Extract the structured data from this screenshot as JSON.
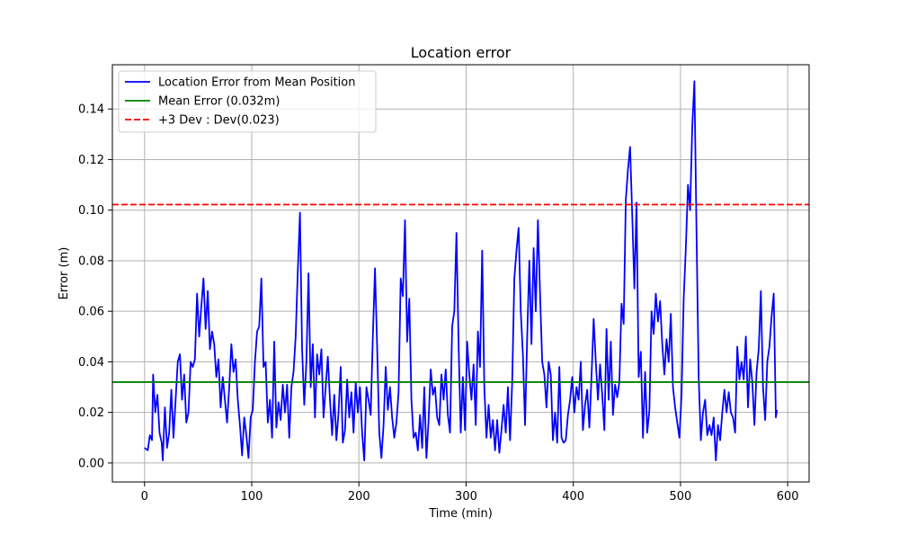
{
  "chart_data": {
    "type": "line",
    "title": "Location error",
    "xlabel": "Time (min)",
    "ylabel": "Error (m)",
    "xlim": [
      -30,
      620
    ],
    "ylim": [
      -0.0075,
      0.1575
    ],
    "x_ticks": [
      0,
      100,
      200,
      300,
      400,
      500,
      600
    ],
    "x_tick_labels": [
      "0",
      "100",
      "200",
      "300",
      "400",
      "500",
      "600"
    ],
    "y_ticks": [
      0.0,
      0.02,
      0.04,
      0.06,
      0.08,
      0.1,
      0.12,
      0.14
    ],
    "y_tick_labels": [
      "0.00",
      "0.02",
      "0.04",
      "0.06",
      "0.08",
      "0.10",
      "0.12",
      "0.14"
    ],
    "grid": true,
    "legend_position": "top-left",
    "series": [
      {
        "name": "Location Error from Mean Position",
        "color": "#0000ff",
        "style": "solid",
        "points": [
          [
            0,
            0.006
          ],
          [
            3,
            0.005
          ],
          [
            5,
            0.011
          ],
          [
            7,
            0.009
          ],
          [
            8,
            0.035
          ],
          [
            10,
            0.02
          ],
          [
            12,
            0.027
          ],
          [
            14,
            0.012
          ],
          [
            16,
            0.008
          ],
          [
            17,
            0.001
          ],
          [
            19,
            0.022
          ],
          [
            21,
            0.006
          ],
          [
            23,
            0.012
          ],
          [
            25,
            0.029
          ],
          [
            27,
            0.01
          ],
          [
            29,
            0.025
          ],
          [
            31,
            0.04
          ],
          [
            33,
            0.043
          ],
          [
            35,
            0.025
          ],
          [
            37,
            0.035
          ],
          [
            39,
            0.016
          ],
          [
            41,
            0.02
          ],
          [
            43,
            0.04
          ],
          [
            45,
            0.038
          ],
          [
            47,
            0.041
          ],
          [
            49,
            0.067
          ],
          [
            51,
            0.05
          ],
          [
            53,
            0.062
          ],
          [
            55,
            0.073
          ],
          [
            57,
            0.053
          ],
          [
            59,
            0.068
          ],
          [
            61,
            0.045
          ],
          [
            63,
            0.052
          ],
          [
            65,
            0.047
          ],
          [
            67,
            0.034
          ],
          [
            69,
            0.041
          ],
          [
            71,
            0.022
          ],
          [
            73,
            0.034
          ],
          [
            75,
            0.025
          ],
          [
            77,
            0.016
          ],
          [
            79,
            0.03
          ],
          [
            81,
            0.047
          ],
          [
            83,
            0.036
          ],
          [
            85,
            0.041
          ],
          [
            87,
            0.025
          ],
          [
            89,
            0.015
          ],
          [
            91,
            0.003
          ],
          [
            93,
            0.018
          ],
          [
            95,
            0.011
          ],
          [
            97,
            0.002
          ],
          [
            99,
            0.018
          ],
          [
            101,
            0.021
          ],
          [
            103,
            0.04
          ],
          [
            105,
            0.052
          ],
          [
            107,
            0.054
          ],
          [
            109,
            0.073
          ],
          [
            111,
            0.038
          ],
          [
            113,
            0.04
          ],
          [
            115,
            0.016
          ],
          [
            117,
            0.025
          ],
          [
            119,
            0.01
          ],
          [
            121,
            0.048
          ],
          [
            123,
            0.014
          ],
          [
            125,
            0.024
          ],
          [
            127,
            0.017
          ],
          [
            129,
            0.031
          ],
          [
            131,
            0.02
          ],
          [
            133,
            0.031
          ],
          [
            135,
            0.01
          ],
          [
            137,
            0.03
          ],
          [
            139,
            0.036
          ],
          [
            141,
            0.05
          ],
          [
            143,
            0.076
          ],
          [
            145,
            0.099
          ],
          [
            147,
            0.045
          ],
          [
            149,
            0.023
          ],
          [
            151,
            0.04
          ],
          [
            153,
            0.075
          ],
          [
            155,
            0.03
          ],
          [
            157,
            0.047
          ],
          [
            159,
            0.018
          ],
          [
            161,
            0.043
          ],
          [
            163,
            0.035
          ],
          [
            165,
            0.045
          ],
          [
            167,
            0.018
          ],
          [
            169,
            0.03
          ],
          [
            171,
            0.042
          ],
          [
            173,
            0.025
          ],
          [
            175,
            0.011
          ],
          [
            177,
            0.027
          ],
          [
            179,
            0.009
          ],
          [
            181,
            0.02
          ],
          [
            183,
            0.038
          ],
          [
            185,
            0.008
          ],
          [
            187,
            0.013
          ],
          [
            189,
            0.033
          ],
          [
            191,
            0.018
          ],
          [
            193,
            0.028
          ],
          [
            195,
            0.012
          ],
          [
            197,
            0.032
          ],
          [
            199,
            0.02
          ],
          [
            201,
            0.03
          ],
          [
            203,
            0.012
          ],
          [
            205,
            0.001
          ],
          [
            207,
            0.03
          ],
          [
            209,
            0.025
          ],
          [
            211,
            0.019
          ],
          [
            213,
            0.05
          ],
          [
            215,
            0.077
          ],
          [
            217,
            0.046
          ],
          [
            219,
            0.012
          ],
          [
            221,
            0.002
          ],
          [
            223,
            0.015
          ],
          [
            225,
            0.038
          ],
          [
            227,
            0.021
          ],
          [
            229,
            0.03
          ],
          [
            231,
            0.018
          ],
          [
            233,
            0.01
          ],
          [
            235,
            0.016
          ],
          [
            237,
            0.028
          ],
          [
            239,
            0.073
          ],
          [
            241,
            0.066
          ],
          [
            243,
            0.096
          ],
          [
            245,
            0.048
          ],
          [
            247,
            0.065
          ],
          [
            249,
            0.025
          ],
          [
            251,
            0.01
          ],
          [
            253,
            0.012
          ],
          [
            255,
            0.005
          ],
          [
            257,
            0.019
          ],
          [
            259,
            0.006
          ],
          [
            261,
            0.03
          ],
          [
            263,
            0.002
          ],
          [
            265,
            0.017
          ],
          [
            267,
            0.037
          ],
          [
            269,
            0.027
          ],
          [
            271,
            0.03
          ],
          [
            273,
            0.018
          ],
          [
            275,
            0.015
          ],
          [
            277,
            0.035
          ],
          [
            279,
            0.025
          ],
          [
            281,
            0.037
          ],
          [
            283,
            0.019
          ],
          [
            285,
            0.012
          ],
          [
            287,
            0.054
          ],
          [
            289,
            0.06
          ],
          [
            291,
            0.091
          ],
          [
            293,
            0.047
          ],
          [
            295,
            0.012
          ],
          [
            297,
            0.034
          ],
          [
            299,
            0.013
          ],
          [
            301,
            0.048
          ],
          [
            303,
            0.035
          ],
          [
            305,
            0.025
          ],
          [
            307,
            0.039
          ],
          [
            309,
            0.015
          ],
          [
            311,
            0.052
          ],
          [
            313,
            0.038
          ],
          [
            315,
            0.084
          ],
          [
            317,
            0.03
          ],
          [
            319,
            0.01
          ],
          [
            321,
            0.023
          ],
          [
            323,
            0.01
          ],
          [
            325,
            0.017
          ],
          [
            327,
            0.005
          ],
          [
            329,
            0.017
          ],
          [
            331,
            0.004
          ],
          [
            333,
            0.013
          ],
          [
            335,
            0.023
          ],
          [
            337,
            0.012
          ],
          [
            339,
            0.03
          ],
          [
            341,
            0.009
          ],
          [
            343,
            0.032
          ],
          [
            345,
            0.073
          ],
          [
            347,
            0.084
          ],
          [
            349,
            0.093
          ],
          [
            351,
            0.06
          ],
          [
            353,
            0.043
          ],
          [
            355,
            0.015
          ],
          [
            357,
            0.05
          ],
          [
            359,
            0.08
          ],
          [
            361,
            0.047
          ],
          [
            363,
            0.085
          ],
          [
            365,
            0.06
          ],
          [
            367,
            0.096
          ],
          [
            369,
            0.067
          ],
          [
            371,
            0.04
          ],
          [
            373,
            0.035
          ],
          [
            375,
            0.022
          ],
          [
            377,
            0.04
          ],
          [
            379,
            0.035
          ],
          [
            381,
            0.009
          ],
          [
            383,
            0.02
          ],
          [
            385,
            0.008
          ],
          [
            387,
            0.038
          ],
          [
            389,
            0.01
          ],
          [
            391,
            0.008
          ],
          [
            393,
            0.009
          ],
          [
            395,
            0.019
          ],
          [
            397,
            0.025
          ],
          [
            399,
            0.034
          ],
          [
            401,
            0.02
          ],
          [
            403,
            0.03
          ],
          [
            405,
            0.025
          ],
          [
            407,
            0.04
          ],
          [
            409,
            0.013
          ],
          [
            411,
            0.023
          ],
          [
            413,
            0.029
          ],
          [
            415,
            0.014
          ],
          [
            417,
            0.034
          ],
          [
            419,
            0.057
          ],
          [
            421,
            0.04
          ],
          [
            423,
            0.025
          ],
          [
            425,
            0.039
          ],
          [
            427,
            0.027
          ],
          [
            429,
            0.013
          ],
          [
            431,
            0.053
          ],
          [
            433,
            0.025
          ],
          [
            435,
            0.048
          ],
          [
            437,
            0.019
          ],
          [
            439,
            0.031
          ],
          [
            441,
            0.026
          ],
          [
            443,
            0.032
          ],
          [
            445,
            0.063
          ],
          [
            447,
            0.055
          ],
          [
            449,
            0.104
          ],
          [
            451,
            0.116
          ],
          [
            453,
            0.125
          ],
          [
            455,
            0.098
          ],
          [
            457,
            0.069
          ],
          [
            459,
            0.103
          ],
          [
            461,
            0.034
          ],
          [
            463,
            0.044
          ],
          [
            465,
            0.01
          ],
          [
            467,
            0.036
          ],
          [
            469,
            0.012
          ],
          [
            471,
            0.021
          ],
          [
            473,
            0.06
          ],
          [
            475,
            0.051
          ],
          [
            477,
            0.067
          ],
          [
            479,
            0.056
          ],
          [
            481,
            0.064
          ],
          [
            483,
            0.047
          ],
          [
            485,
            0.035
          ],
          [
            487,
            0.049
          ],
          [
            489,
            0.04
          ],
          [
            491,
            0.059
          ],
          [
            493,
            0.03
          ],
          [
            495,
            0.022
          ],
          [
            497,
            0.016
          ],
          [
            499,
            0.01
          ],
          [
            501,
            0.027
          ],
          [
            503,
            0.065
          ],
          [
            505,
            0.085
          ],
          [
            507,
            0.11
          ],
          [
            509,
            0.1
          ],
          [
            511,
            0.133
          ],
          [
            513,
            0.151
          ],
          [
            515,
            0.09
          ],
          [
            517,
            0.034
          ],
          [
            519,
            0.009
          ],
          [
            521,
            0.02
          ],
          [
            523,
            0.025
          ],
          [
            525,
            0.011
          ],
          [
            527,
            0.015
          ],
          [
            529,
            0.011
          ],
          [
            531,
            0.018
          ],
          [
            533,
            0.001
          ],
          [
            535,
            0.015
          ],
          [
            537,
            0.009
          ],
          [
            539,
            0.02
          ],
          [
            541,
            0.029
          ],
          [
            543,
            0.02
          ],
          [
            545,
            0.028
          ],
          [
            547,
            0.02
          ],
          [
            549,
            0.018
          ],
          [
            551,
            0.012
          ],
          [
            553,
            0.046
          ],
          [
            555,
            0.033
          ],
          [
            557,
            0.04
          ],
          [
            559,
            0.033
          ],
          [
            561,
            0.05
          ],
          [
            563,
            0.022
          ],
          [
            565,
            0.041
          ],
          [
            567,
            0.032
          ],
          [
            569,
            0.015
          ],
          [
            571,
            0.036
          ],
          [
            573,
            0.045
          ],
          [
            575,
            0.068
          ],
          [
            577,
            0.03
          ],
          [
            579,
            0.017
          ],
          [
            581,
            0.04
          ],
          [
            583,
            0.046
          ],
          [
            585,
            0.058
          ],
          [
            587,
            0.067
          ],
          [
            589,
            0.018
          ],
          [
            590,
            0.021
          ]
        ]
      },
      {
        "name": "Mean Error (0.032m)",
        "color": "#008000",
        "style": "solid",
        "y": 0.032
      },
      {
        "name": "+3 Dev : Dev(0.023)",
        "color": "#ff0000",
        "style": "dashed",
        "y": 0.1022
      }
    ]
  }
}
